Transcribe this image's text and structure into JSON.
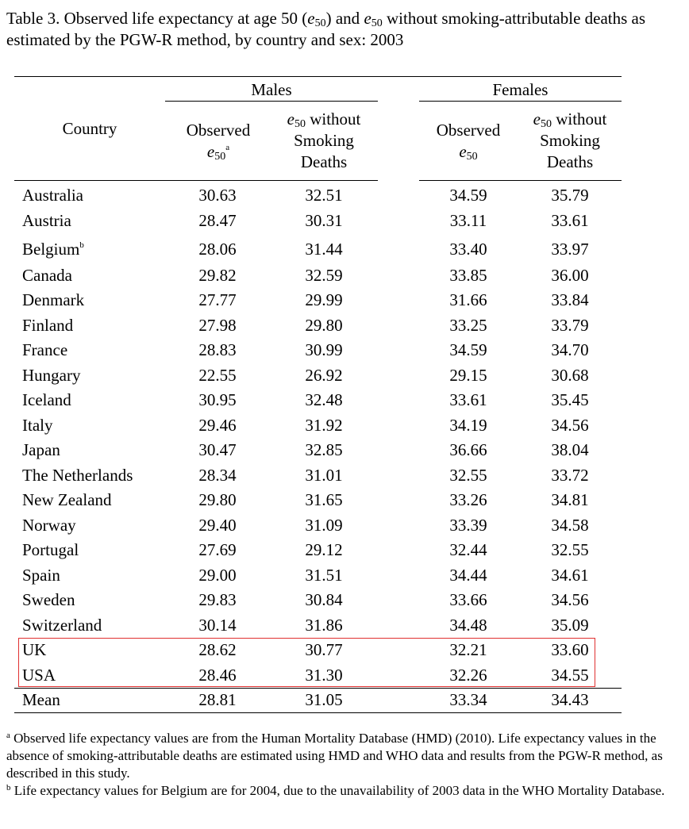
{
  "title": {
    "part1": "Table 3.  Observed life expectancy at age 50 (",
    "sym": "e",
    "sub": "50",
    "part2": ") and ",
    "part3": " without smoking-attributable deaths as estimated by the PGW-R method, by country and sex: 2003"
  },
  "header": {
    "country": "Country",
    "males": "Males",
    "females": "Females",
    "observed": "Observed",
    "e_sym": "e",
    "e_sub": "50",
    "without": "without",
    "smoking": "Smoking",
    "deaths": "Deaths",
    "note_a": "a"
  },
  "rows": [
    {
      "country": "Australia",
      "note": "",
      "m_obs": "30.63",
      "m_wo": "32.51",
      "f_obs": "34.59",
      "f_wo": "35.79"
    },
    {
      "country": "Austria",
      "note": "",
      "m_obs": "28.47",
      "m_wo": "30.31",
      "f_obs": "33.11",
      "f_wo": "33.61"
    },
    {
      "country": "Belgium",
      "note": "b",
      "m_obs": "28.06",
      "m_wo": "31.44",
      "f_obs": "33.40",
      "f_wo": "33.97"
    },
    {
      "country": "Canada",
      "note": "",
      "m_obs": "29.82",
      "m_wo": "32.59",
      "f_obs": "33.85",
      "f_wo": "36.00"
    },
    {
      "country": "Denmark",
      "note": "",
      "m_obs": "27.77",
      "m_wo": "29.99",
      "f_obs": "31.66",
      "f_wo": "33.84"
    },
    {
      "country": "Finland",
      "note": "",
      "m_obs": "27.98",
      "m_wo": "29.80",
      "f_obs": "33.25",
      "f_wo": "33.79"
    },
    {
      "country": "France",
      "note": "",
      "m_obs": "28.83",
      "m_wo": "30.99",
      "f_obs": "34.59",
      "f_wo": "34.70"
    },
    {
      "country": "Hungary",
      "note": "",
      "m_obs": "22.55",
      "m_wo": "26.92",
      "f_obs": "29.15",
      "f_wo": "30.68"
    },
    {
      "country": "Iceland",
      "note": "",
      "m_obs": "30.95",
      "m_wo": "32.48",
      "f_obs": "33.61",
      "f_wo": "35.45"
    },
    {
      "country": "Italy",
      "note": "",
      "m_obs": "29.46",
      "m_wo": "31.92",
      "f_obs": "34.19",
      "f_wo": "34.56"
    },
    {
      "country": "Japan",
      "note": "",
      "m_obs": "30.47",
      "m_wo": "32.85",
      "f_obs": "36.66",
      "f_wo": "38.04"
    },
    {
      "country": "The Netherlands",
      "note": "",
      "m_obs": "28.34",
      "m_wo": "31.01",
      "f_obs": "32.55",
      "f_wo": "33.72"
    },
    {
      "country": "New Zealand",
      "note": "",
      "m_obs": "29.80",
      "m_wo": "31.65",
      "f_obs": "33.26",
      "f_wo": "34.81"
    },
    {
      "country": "Norway",
      "note": "",
      "m_obs": "29.40",
      "m_wo": "31.09",
      "f_obs": "33.39",
      "f_wo": "34.58"
    },
    {
      "country": "Portugal",
      "note": "",
      "m_obs": "27.69",
      "m_wo": "29.12",
      "f_obs": "32.44",
      "f_wo": "32.55"
    },
    {
      "country": "Spain",
      "note": "",
      "m_obs": "29.00",
      "m_wo": "31.51",
      "f_obs": "34.44",
      "f_wo": "34.61"
    },
    {
      "country": "Sweden",
      "note": "",
      "m_obs": "29.83",
      "m_wo": "30.84",
      "f_obs": "33.66",
      "f_wo": "34.56"
    },
    {
      "country": "Switzerland",
      "note": "",
      "m_obs": "30.14",
      "m_wo": "31.86",
      "f_obs": "34.48",
      "f_wo": "35.09"
    },
    {
      "country": "UK",
      "note": "",
      "m_obs": "28.62",
      "m_wo": "30.77",
      "f_obs": "32.21",
      "f_wo": "33.60"
    },
    {
      "country": "USA",
      "note": "",
      "m_obs": "28.46",
      "m_wo": "31.30",
      "f_obs": "32.26",
      "f_wo": "34.55"
    }
  ],
  "mean": {
    "country": "Mean",
    "m_obs": "28.81",
    "m_wo": "31.05",
    "f_obs": "33.34",
    "f_wo": "34.43"
  },
  "footnotes": {
    "a_mark": "a",
    "a_text": " Observed life expectancy values are from the Human Mortality Database (HMD)  (2010).  Life expectancy values in the absence of smoking-attributable deaths are estimated using HMD and WHO data and results from the PGW-R method, as described in this study.",
    "b_mark": "b",
    "b_text": " Life expectancy values for Belgium are for 2004, due to the unavailability of 2003 data in the WHO Mortality Database."
  },
  "colors": {
    "highlight": "#e03030"
  }
}
